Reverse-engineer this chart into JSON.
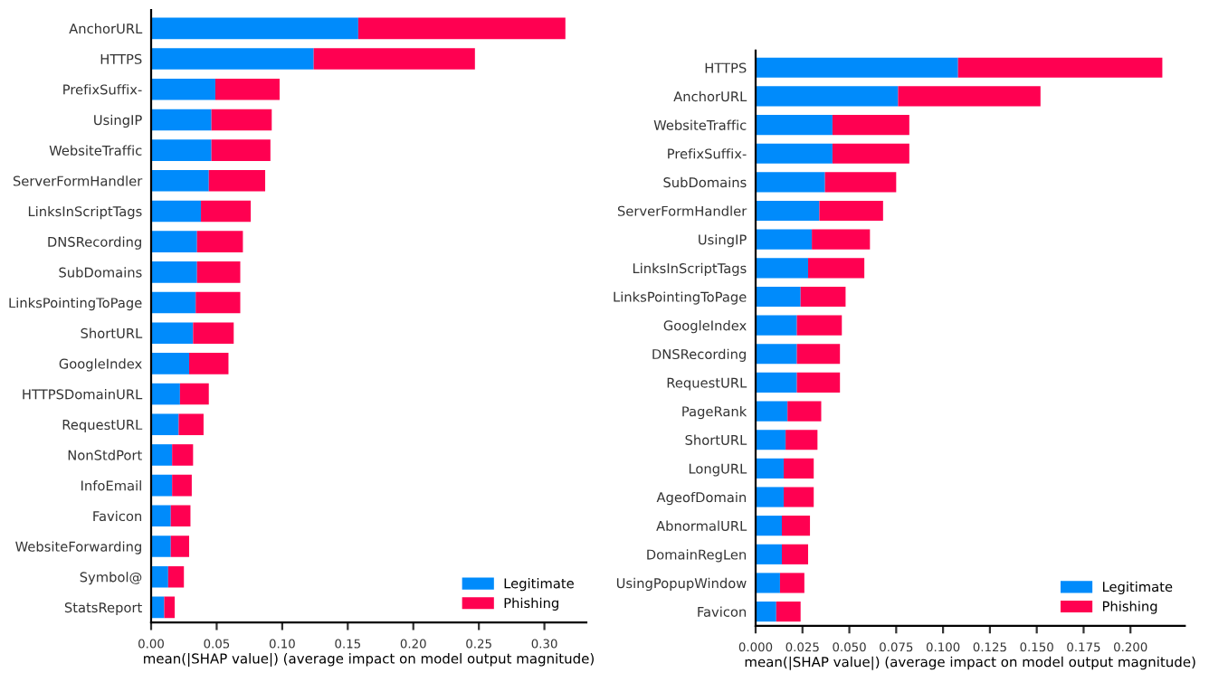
{
  "chart_data": [
    {
      "type": "bar",
      "orientation": "horizontal",
      "stacked": true,
      "legend": "lower right",
      "grid": false,
      "xlabel": "mean(|SHAP value|) (average impact on model output magnitude)",
      "categories": [
        "AnchorURL",
        "HTTPS",
        "PrefixSuffix-",
        "UsingIP",
        "WebsiteTraffic",
        "ServerFormHandler",
        "LinksInScriptTags",
        "DNSRecording",
        "SubDomains",
        "LinksPointingToPage",
        "ShortURL",
        "GoogleIndex",
        "HTTPSDomainURL",
        "RequestURL",
        "NonStdPort",
        "InfoEmail",
        "Favicon",
        "WebsiteForwarding",
        "Symbol@",
        "StatsReport"
      ],
      "xlim": [
        0,
        0.332
      ],
      "xticks": [
        {
          "value": 0,
          "label": "0.00"
        },
        {
          "value": 0.05,
          "label": "0.05"
        },
        {
          "value": 0.1,
          "label": "0.10"
        },
        {
          "value": 0.15,
          "label": "0.15"
        },
        {
          "value": 0.2,
          "label": "0.20"
        },
        {
          "value": 0.25,
          "label": "0.25"
        },
        {
          "value": 0.3,
          "label": "0.30"
        }
      ],
      "series": [
        {
          "name": "Legitimate",
          "color": "#008bfb",
          "values": [
            0.158,
            0.124,
            0.049,
            0.046,
            0.046,
            0.044,
            0.038,
            0.035,
            0.035,
            0.034,
            0.032,
            0.029,
            0.022,
            0.021,
            0.016,
            0.016,
            0.015,
            0.015,
            0.013,
            0.01
          ]
        },
        {
          "name": "Phishing",
          "color": "#ff0051",
          "values": [
            0.158,
            0.123,
            0.049,
            0.046,
            0.045,
            0.043,
            0.038,
            0.035,
            0.033,
            0.034,
            0.031,
            0.03,
            0.022,
            0.019,
            0.016,
            0.015,
            0.015,
            0.014,
            0.012,
            0.008
          ]
        }
      ]
    },
    {
      "type": "bar",
      "orientation": "horizontal",
      "stacked": true,
      "legend": "lower right",
      "grid": false,
      "xlabel": "mean(|SHAP value|) (average impact on model output magnitude)",
      "categories": [
        "HTTPS",
        "AnchorURL",
        "WebsiteTraffic",
        "PrefixSuffix-",
        "SubDomains",
        "ServerFormHandler",
        "UsingIP",
        "LinksInScriptTags",
        "LinksPointingToPage",
        "GoogleIndex",
        "DNSRecording",
        "RequestURL",
        "PageRank",
        "ShortURL",
        "LongURL",
        "AgeofDomain",
        "AbnormalURL",
        "DomainRegLen",
        "UsingPopupWindow",
        "Favicon"
      ],
      "xlim": [
        0,
        0.229
      ],
      "xticks": [
        {
          "value": 0,
          "label": "0.000"
        },
        {
          "value": 0.025,
          "label": "0.025"
        },
        {
          "value": 0.05,
          "label": "0.050"
        },
        {
          "value": 0.075,
          "label": "0.075"
        },
        {
          "value": 0.1,
          "label": "0.100"
        },
        {
          "value": 0.125,
          "label": "0.125"
        },
        {
          "value": 0.15,
          "label": "0.150"
        },
        {
          "value": 0.175,
          "label": "0.175"
        },
        {
          "value": 0.2,
          "label": "0.200"
        }
      ],
      "series": [
        {
          "name": "Legitimate",
          "color": "#008bfb",
          "values": [
            0.108,
            0.076,
            0.041,
            0.041,
            0.037,
            0.034,
            0.03,
            0.028,
            0.024,
            0.022,
            0.022,
            0.022,
            0.017,
            0.016,
            0.015,
            0.015,
            0.014,
            0.014,
            0.013,
            0.011
          ]
        },
        {
          "name": "Phishing",
          "color": "#ff0051",
          "values": [
            0.109,
            0.076,
            0.041,
            0.041,
            0.038,
            0.034,
            0.031,
            0.03,
            0.024,
            0.024,
            0.023,
            0.023,
            0.018,
            0.017,
            0.016,
            0.016,
            0.015,
            0.014,
            0.013,
            0.013
          ]
        }
      ]
    }
  ]
}
